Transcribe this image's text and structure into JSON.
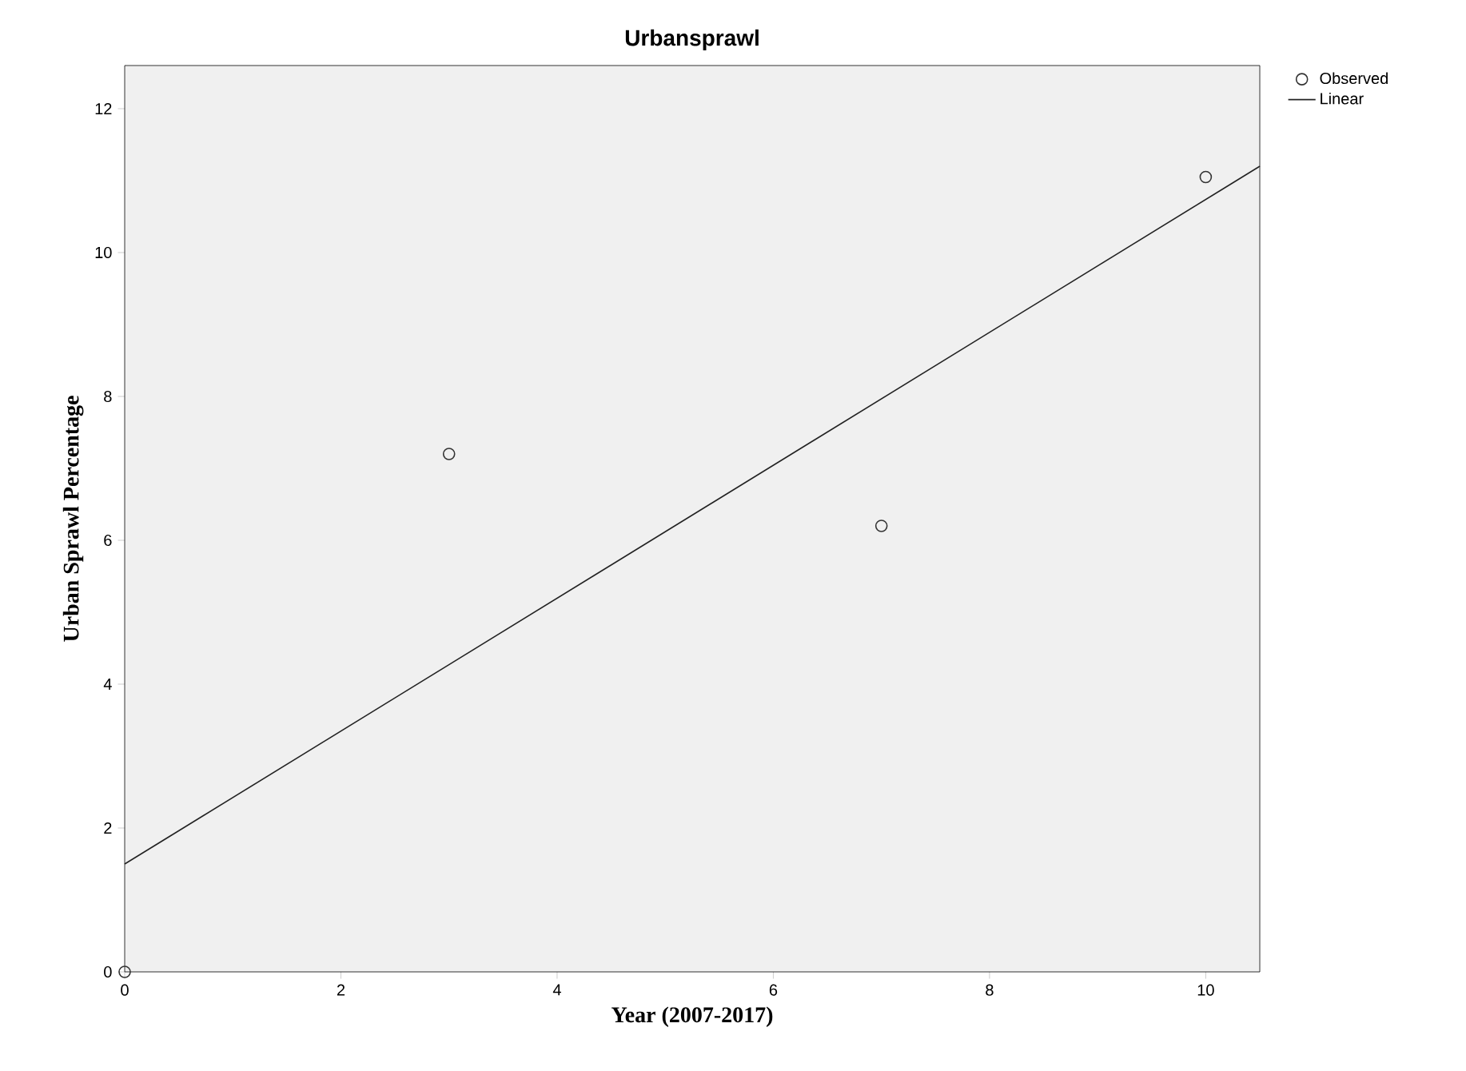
{
  "chart_data": {
    "type": "scatter",
    "title": "Urbansprawl",
    "xlabel": "Year (2007-2017)",
    "ylabel": "Urban Sprawl Percentage",
    "series": [
      {
        "name": "Observed",
        "color": "#333333",
        "marker": "circle",
        "x": [
          0,
          3,
          7,
          10
        ],
        "values": [
          0,
          7.2,
          6.2,
          11.05
        ]
      },
      {
        "name": "Linear",
        "type": "line",
        "color": "#222222",
        "x": [
          0,
          10.5
        ],
        "values": [
          1.5,
          11.2
        ]
      }
    ],
    "xlim": [
      0,
      10.5
    ],
    "ylim": [
      0,
      12.6
    ],
    "xticks": [
      0,
      2,
      4,
      6,
      8,
      10
    ],
    "yticks": [
      0,
      2,
      4,
      6,
      8,
      10,
      12
    ],
    "grid": false,
    "legend": "top right"
  }
}
